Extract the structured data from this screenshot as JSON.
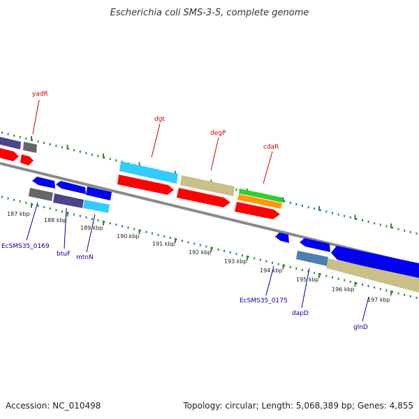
{
  "title": "Escherichia coli SMS-3-5, complete genome",
  "footer": {
    "accession": "Accession: NC_010498",
    "summary": "Topology: circular; Length: 5,068,389 bp; Genes: 4,855"
  },
  "colors": {
    "backbone": "#8a8a8a",
    "tick": "#2e8b2e",
    "upper_label": "#cc0000",
    "lower_label": "#000099",
    "red": "#ff0000",
    "cyan": "#33ccff",
    "tan": "#c8c088",
    "blue": "#0000ee",
    "navy": "#4a4488",
    "gray": "#666666",
    "green": "#33cc33",
    "orange": "#ff9900",
    "steel": "#4c7fb0"
  },
  "scale": {
    "unit": "kbp",
    "labels": [
      "187 kbp",
      "188 kbp",
      "189 kbp",
      "190 kbp",
      "191 kbp",
      "192 kbp",
      "193 kbp",
      "194 kbp",
      "195 kbp",
      "196 kbp",
      "197 kbp"
    ]
  },
  "upper_labels": [
    "yadR",
    "dgt",
    "degP",
    "cdaR"
  ],
  "lower_labels": [
    "EcSMS35_0169",
    "btuF",
    "mtnN",
    "EcSMS35_0175",
    "dapD",
    "glnD"
  ]
}
